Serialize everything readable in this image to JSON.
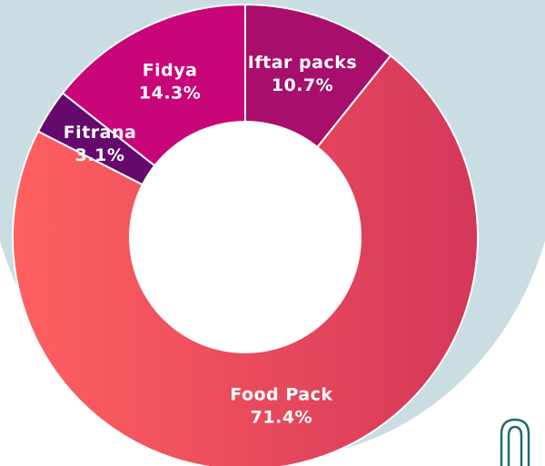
{
  "chart_data": {
    "type": "donut",
    "categories": [
      "Iftar packs",
      "Food Pack",
      "Fitrana",
      "Fidya"
    ],
    "values": [
      10.7,
      71.4,
      3.1,
      14.3
    ],
    "value_labels": [
      "10.7%",
      "71.4%",
      "3.1%",
      "14.3%"
    ],
    "colors": [
      "#a80e6c",
      "#e8455a",
      "#650a6c",
      "#c9057a"
    ]
  }
}
